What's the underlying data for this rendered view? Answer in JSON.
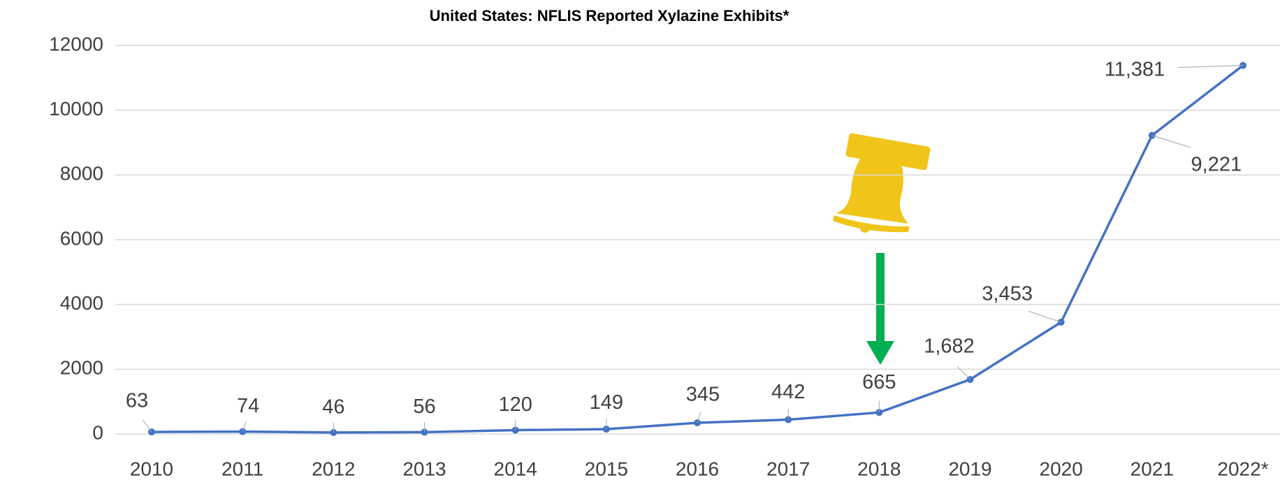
{
  "chart_data": {
    "type": "line",
    "title": "United States: NFLIS Reported Xylazine Exhibits*",
    "categories": [
      "2010",
      "2011",
      "2012",
      "2013",
      "2014",
      "2015",
      "2016",
      "2017",
      "2018",
      "2019",
      "2020",
      "2021",
      "2022*"
    ],
    "series": [
      {
        "name": "Xylazine Exhibits",
        "color": "#4472c4",
        "values": [
          63,
          74,
          46,
          56,
          120,
          149,
          345,
          442,
          665,
          1682,
          3453,
          9221,
          11381
        ],
        "value_labels": [
          "63",
          "74",
          "46",
          "56",
          "120",
          "149",
          "345",
          "442",
          "665",
          "1,682",
          "3,453",
          "9,221",
          "11,381"
        ]
      }
    ],
    "ylim": [
      0,
      12000
    ],
    "yticks": [
      0,
      2000,
      4000,
      6000,
      8000,
      10000,
      12000
    ],
    "grid": true
  }
}
